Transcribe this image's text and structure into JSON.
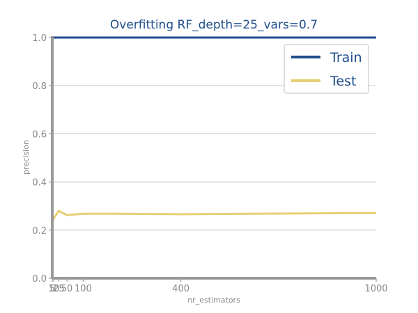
{
  "chart_data": {
    "type": "line",
    "title": "Overfitting RF_depth=25_vars=0.7",
    "xlabel": "nr_estimators",
    "ylabel": "precision",
    "x": [
      5,
      10,
      25,
      50,
      100,
      200,
      300,
      400,
      500,
      750,
      1000
    ],
    "x_ticks": [
      5,
      10,
      25,
      50,
      100,
      400,
      1000
    ],
    "y_ticks": [
      "0.0",
      "0.2",
      "0.4",
      "0.6",
      "0.8",
      "1.0"
    ],
    "xlim": [
      5,
      1000
    ],
    "ylim": [
      0,
      1.0
    ],
    "grid": "horizontal",
    "legend_position": "top-right",
    "series": [
      {
        "name": "Train",
        "color": "#1f4e8c",
        "values": [
          1.0,
          1.0,
          1.0,
          1.0,
          1.0,
          1.0,
          1.0,
          1.0,
          1.0,
          1.0,
          1.0
        ]
      },
      {
        "name": "Test",
        "color": "#e6d074",
        "values": [
          0.23,
          0.25,
          0.28,
          0.262,
          0.268,
          0.268,
          0.267,
          0.266,
          0.267,
          0.269,
          0.271
        ]
      }
    ]
  }
}
